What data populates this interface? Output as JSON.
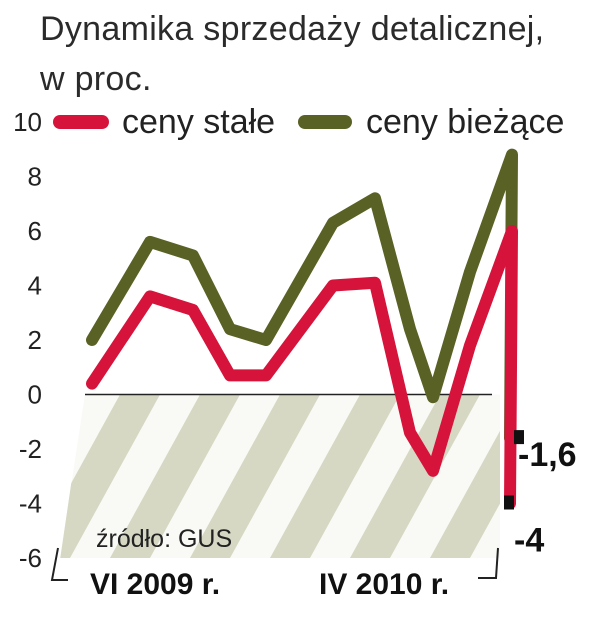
{
  "chart_data": {
    "type": "line",
    "title_line1": "Dynamika sprzedaży detalicznej,",
    "title_line2": "w proc.",
    "ylim": [
      -6,
      10
    ],
    "yticks": [
      "10",
      "8",
      "6",
      "4",
      "2",
      "0",
      "-2",
      "-4",
      "-6"
    ],
    "x_start_label": "VI 2009 r.",
    "x_end_label": "IV 2010 r.",
    "source": "źródło: GUS",
    "series": [
      {
        "name": "ceny stałe",
        "color": "#d6133b",
        "values": [
          0.4,
          3.6,
          3.1,
          0.7,
          0.7,
          4.0,
          4.1,
          -1.4,
          -2.8,
          1.8,
          6.0,
          -4.0
        ]
      },
      {
        "name": "ceny bieżące",
        "color": "#5a6124",
        "values": [
          2.0,
          5.6,
          5.1,
          2.4,
          2.0,
          6.3,
          7.2,
          2.4,
          -0.1,
          4.5,
          8.8,
          -1.6
        ]
      }
    ],
    "annotations": [
      {
        "series": 1,
        "point": 11,
        "text": "-1,6"
      },
      {
        "series": 0,
        "point": 11,
        "text": "-4"
      }
    ]
  }
}
